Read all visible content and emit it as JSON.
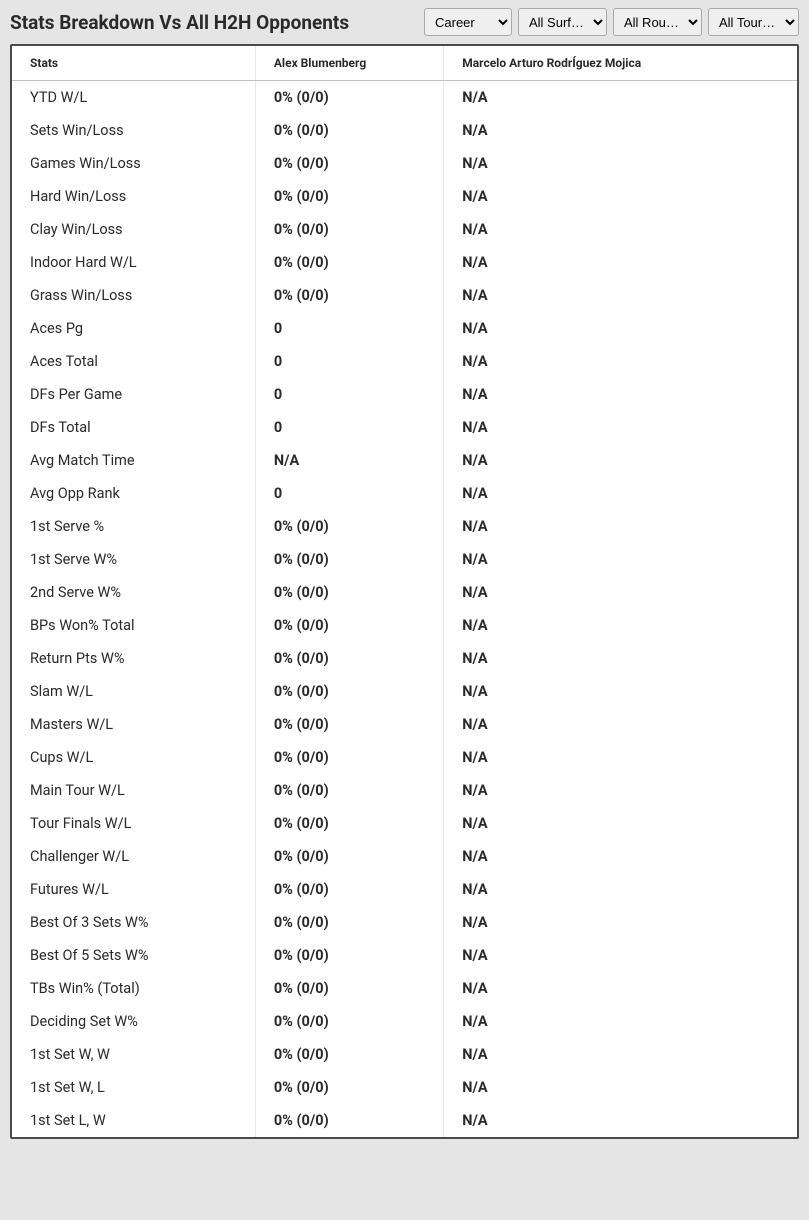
{
  "header": {
    "title": "Stats Breakdown Vs All H2H Opponents"
  },
  "filters": {
    "period": {
      "selected": "Career",
      "options": [
        "Career"
      ]
    },
    "surface": {
      "selected": "All Surf…",
      "options": [
        "All Surf…"
      ]
    },
    "round": {
      "selected": "All Rou…",
      "options": [
        "All Rou…"
      ]
    },
    "tournament": {
      "selected": "All Tour…",
      "options": [
        "All Tour…"
      ]
    }
  },
  "table": {
    "columns": {
      "stats": "Stats",
      "player1": "Alex Blumenberg",
      "player2": "Marcelo Arturo RodrÍguez Mojica"
    },
    "rows": [
      {
        "label": "YTD W/L",
        "p1": "0% (0/0)",
        "p2": "N/A"
      },
      {
        "label": "Sets Win/Loss",
        "p1": "0% (0/0)",
        "p2": "N/A"
      },
      {
        "label": "Games Win/Loss",
        "p1": "0% (0/0)",
        "p2": "N/A"
      },
      {
        "label": "Hard Win/Loss",
        "p1": "0% (0/0)",
        "p2": "N/A"
      },
      {
        "label": "Clay Win/Loss",
        "p1": "0% (0/0)",
        "p2": "N/A"
      },
      {
        "label": "Indoor Hard W/L",
        "p1": "0% (0/0)",
        "p2": "N/A"
      },
      {
        "label": "Grass Win/Loss",
        "p1": "0% (0/0)",
        "p2": "N/A"
      },
      {
        "label": "Aces Pg",
        "p1": "0",
        "p2": "N/A"
      },
      {
        "label": "Aces Total",
        "p1": "0",
        "p2": "N/A"
      },
      {
        "label": "DFs Per Game",
        "p1": "0",
        "p2": "N/A"
      },
      {
        "label": "DFs Total",
        "p1": "0",
        "p2": "N/A"
      },
      {
        "label": "Avg Match Time",
        "p1": "N/A",
        "p2": "N/A"
      },
      {
        "label": "Avg Opp Rank",
        "p1": "0",
        "p2": "N/A"
      },
      {
        "label": "1st Serve %",
        "p1": "0% (0/0)",
        "p2": "N/A"
      },
      {
        "label": "1st Serve W%",
        "p1": "0% (0/0)",
        "p2": "N/A"
      },
      {
        "label": "2nd Serve W%",
        "p1": "0% (0/0)",
        "p2": "N/A"
      },
      {
        "label": "BPs Won% Total",
        "p1": "0% (0/0)",
        "p2": "N/A"
      },
      {
        "label": "Return Pts W%",
        "p1": "0% (0/0)",
        "p2": "N/A"
      },
      {
        "label": "Slam W/L",
        "p1": "0% (0/0)",
        "p2": "N/A"
      },
      {
        "label": "Masters W/L",
        "p1": "0% (0/0)",
        "p2": "N/A"
      },
      {
        "label": "Cups W/L",
        "p1": "0% (0/0)",
        "p2": "N/A"
      },
      {
        "label": "Main Tour W/L",
        "p1": "0% (0/0)",
        "p2": "N/A"
      },
      {
        "label": "Tour Finals W/L",
        "p1": "0% (0/0)",
        "p2": "N/A"
      },
      {
        "label": "Challenger W/L",
        "p1": "0% (0/0)",
        "p2": "N/A"
      },
      {
        "label": "Futures W/L",
        "p1": "0% (0/0)",
        "p2": "N/A"
      },
      {
        "label": "Best Of 3 Sets W%",
        "p1": "0% (0/0)",
        "p2": "N/A"
      },
      {
        "label": "Best Of 5 Sets W%",
        "p1": "0% (0/0)",
        "p2": "N/A"
      },
      {
        "label": "TBs Win% (Total)",
        "p1": "0% (0/0)",
        "p2": "N/A"
      },
      {
        "label": "Deciding Set W%",
        "p1": "0% (0/0)",
        "p2": "N/A"
      },
      {
        "label": "1st Set W, W",
        "p1": "0% (0/0)",
        "p2": "N/A"
      },
      {
        "label": "1st Set W, L",
        "p1": "0% (0/0)",
        "p2": "N/A"
      },
      {
        "label": "1st Set L, W",
        "p1": "0% (0/0)",
        "p2": "N/A"
      }
    ]
  }
}
